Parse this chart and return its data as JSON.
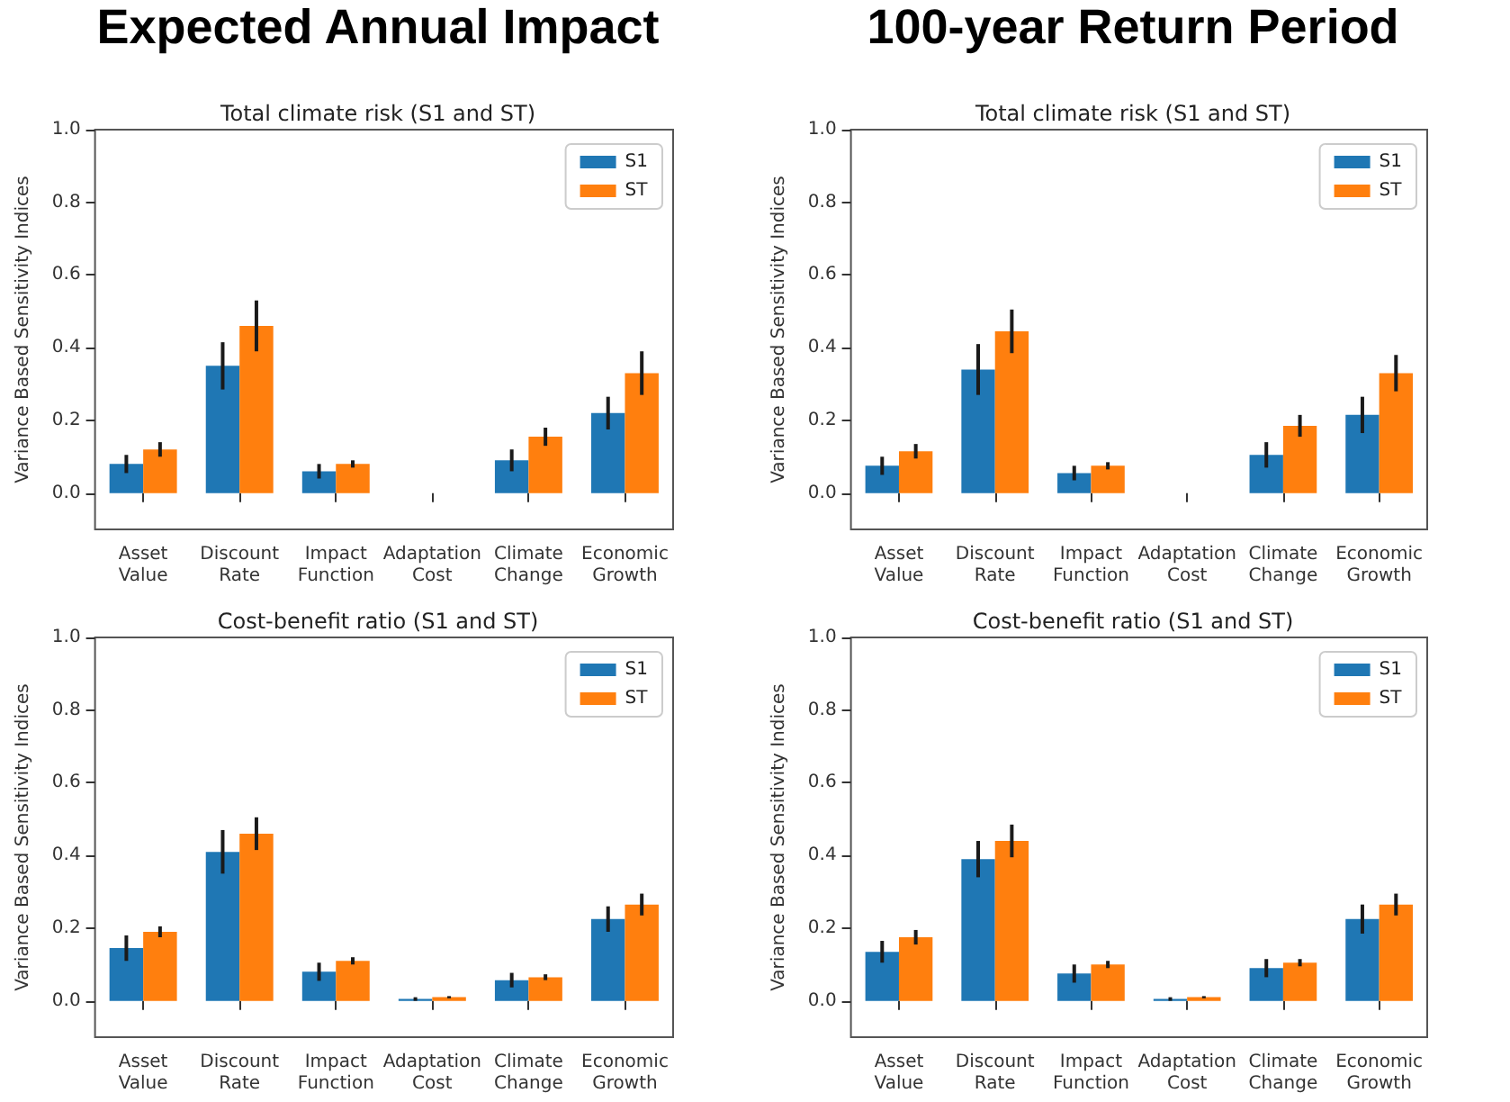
{
  "chart_data": [
    {
      "type": "bar",
      "title": "Total climate risk (S1 and ST)",
      "annotations": [
        "Expected Annual Impact"
      ],
      "ylabel": "Variance Based Sensitivity Indices",
      "categories": [
        "Asset\nValue",
        "Discount\nRate",
        "Impact\nFunction",
        "Adaptation\nCost",
        "Climate\nChange",
        "Economic\nGrowth"
      ],
      "ylim": [
        -0.1,
        1.0
      ],
      "yticks": [
        {
          "value": 0,
          "label": "0.0"
        },
        {
          "value": 0.2,
          "label": "0.2"
        },
        {
          "value": 0.4,
          "label": "0.4"
        },
        {
          "value": 0.6,
          "label": "0.6"
        },
        {
          "value": 0.8,
          "label": "0.8"
        },
        {
          "value": 1.0,
          "label": "1.0"
        }
      ],
      "legend": "top right",
      "series": [
        {
          "name": "S1",
          "color": "#1f77b4",
          "values": [
            0.08,
            0.35,
            0.06,
            0,
            0.09,
            0.22
          ],
          "errors": [
            0.025,
            0.065,
            0.02,
            null,
            0.03,
            0.045
          ]
        },
        {
          "name": "ST",
          "color": "#ff7f0e",
          "values": [
            0.12,
            0.46,
            0.08,
            0,
            0.155,
            0.33
          ],
          "errors": [
            0.02,
            0.07,
            0.01,
            null,
            0.025,
            0.06
          ]
        }
      ]
    },
    {
      "type": "bar",
      "title": "Total climate risk (S1 and ST)",
      "annotations": [
        "100-year Return Period"
      ],
      "ylabel": "Variance Based Sensitivity Indices",
      "categories": [
        "Asset\nValue",
        "Discount\nRate",
        "Impact\nFunction",
        "Adaptation\nCost",
        "Climate\nChange",
        "Economic\nGrowth"
      ],
      "ylim": [
        -0.1,
        1.0
      ],
      "yticks": [
        {
          "value": 0,
          "label": "0.0"
        },
        {
          "value": 0.2,
          "label": "0.2"
        },
        {
          "value": 0.4,
          "label": "0.4"
        },
        {
          "value": 0.6,
          "label": "0.6"
        },
        {
          "value": 0.8,
          "label": "0.8"
        },
        {
          "value": 1.0,
          "label": "1.0"
        }
      ],
      "legend": "top right",
      "series": [
        {
          "name": "S1",
          "color": "#1f77b4",
          "values": [
            0.075,
            0.34,
            0.055,
            0,
            0.105,
            0.215
          ],
          "errors": [
            0.025,
            0.07,
            0.02,
            null,
            0.035,
            0.05
          ]
        },
        {
          "name": "ST",
          "color": "#ff7f0e",
          "values": [
            0.115,
            0.445,
            0.075,
            0,
            0.185,
            0.33
          ],
          "errors": [
            0.02,
            0.06,
            0.01,
            null,
            0.03,
            0.05
          ]
        }
      ]
    },
    {
      "type": "bar",
      "title": "Cost-benefit ratio (S1 and ST)",
      "ylabel": "Variance Based Sensitivity Indices",
      "categories": [
        "Asset\nValue",
        "Discount\nRate",
        "Impact\nFunction",
        "Adaptation\nCost",
        "Climate\nChange",
        "Economic\nGrowth"
      ],
      "ylim": [
        -0.1,
        1.0
      ],
      "yticks": [
        {
          "value": 0,
          "label": "0.0"
        },
        {
          "value": 0.2,
          "label": "0.2"
        },
        {
          "value": 0.4,
          "label": "0.4"
        },
        {
          "value": 0.6,
          "label": "0.6"
        },
        {
          "value": 0.8,
          "label": "0.8"
        },
        {
          "value": 1.0,
          "label": "1.0"
        }
      ],
      "legend": "top right",
      "series": [
        {
          "name": "S1",
          "color": "#1f77b4",
          "values": [
            0.145,
            0.41,
            0.08,
            0.005,
            0.057,
            0.225
          ],
          "errors": [
            0.035,
            0.06,
            0.025,
            0.005,
            0.02,
            0.035
          ]
        },
        {
          "name": "ST",
          "color": "#ff7f0e",
          "values": [
            0.19,
            0.46,
            0.11,
            0.01,
            0.065,
            0.265
          ],
          "errors": [
            0.015,
            0.045,
            0.01,
            0.003,
            0.008,
            0.03
          ]
        }
      ]
    },
    {
      "type": "bar",
      "title": "Cost-benefit ratio (S1 and ST)",
      "ylabel": "Variance Based Sensitivity Indices",
      "categories": [
        "Asset\nValue",
        "Discount\nRate",
        "Impact\nFunction",
        "Adaptation\nCost",
        "Climate\nChange",
        "Economic\nGrowth"
      ],
      "ylim": [
        -0.1,
        1.0
      ],
      "yticks": [
        {
          "value": 0,
          "label": "0.0"
        },
        {
          "value": 0.2,
          "label": "0.2"
        },
        {
          "value": 0.4,
          "label": "0.4"
        },
        {
          "value": 0.6,
          "label": "0.6"
        },
        {
          "value": 0.8,
          "label": "0.8"
        },
        {
          "value": 1.0,
          "label": "1.0"
        }
      ],
      "legend": "top right",
      "series": [
        {
          "name": "S1",
          "color": "#1f77b4",
          "values": [
            0.135,
            0.39,
            0.075,
            0.005,
            0.09,
            0.225
          ],
          "errors": [
            0.03,
            0.05,
            0.025,
            0.005,
            0.025,
            0.04
          ]
        },
        {
          "name": "ST",
          "color": "#ff7f0e",
          "values": [
            0.175,
            0.44,
            0.1,
            0.01,
            0.105,
            0.265
          ],
          "errors": [
            0.02,
            0.045,
            0.01,
            0.003,
            0.01,
            0.03
          ]
        }
      ]
    }
  ]
}
